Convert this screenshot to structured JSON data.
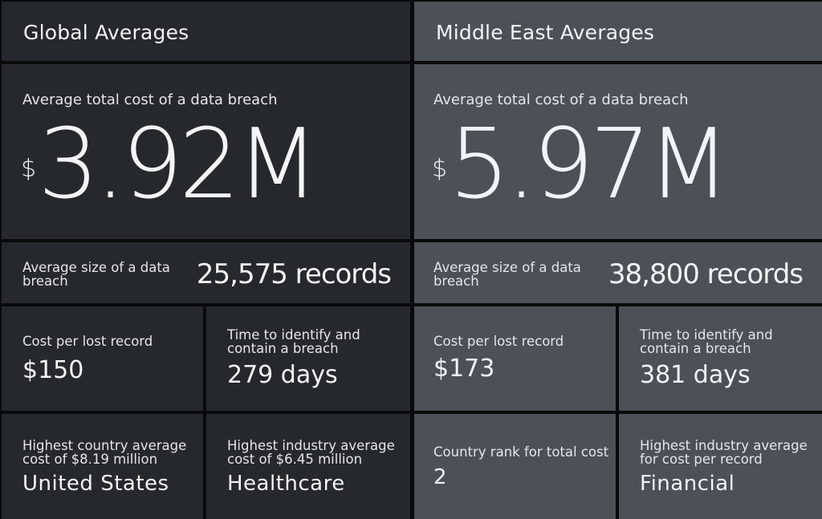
{
  "global": {
    "heading": "Global Averages",
    "total_cost_label": "Average total cost of a data breach",
    "currency": "$",
    "total_cost_value": "3.92M",
    "size_label": "Average size of a data breach",
    "size_value": "25,575 records",
    "cost_per_record_label": "Cost per lost record",
    "cost_per_record_value": "$150",
    "time_label": "Time to identify and contain a breach",
    "time_value": "279 days",
    "country_label": "Highest country average cost of $8.19 million",
    "country_value": "United States",
    "industry_label": "Highest industry average cost of $6.45 million",
    "industry_value": "Healthcare"
  },
  "middle_east": {
    "heading": "Middle East Averages",
    "total_cost_label": "Average total cost of a data breach",
    "currency": "$",
    "total_cost_value": "5.97M",
    "size_label": "Average size of a data breach",
    "size_value": "38,800 records",
    "cost_per_record_label": "Cost per lost record",
    "cost_per_record_value": "$173",
    "time_label": "Time to identify and contain a breach",
    "time_value": "381 days",
    "rank_label": "Country rank for total cost",
    "rank_value": "2",
    "industry_label": "Highest industry average for cost per record",
    "industry_value": "Financial"
  },
  "colors": {
    "global_panel": "#25282c",
    "middle_east_panel": "#4c5057",
    "divider": "#0a0a0a",
    "text": "#f2f4f8"
  }
}
